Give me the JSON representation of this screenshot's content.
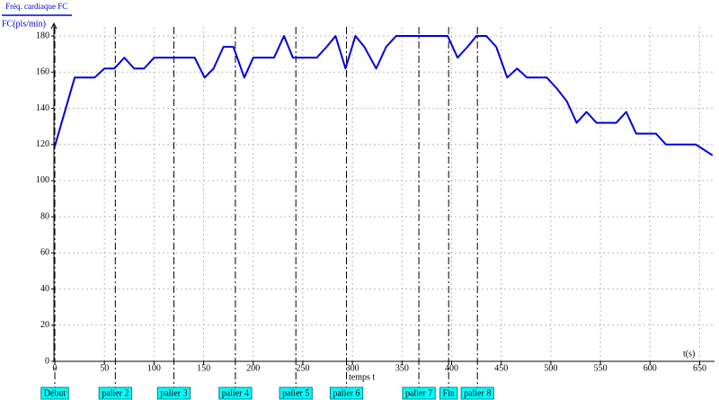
{
  "chart_data": {
    "type": "line",
    "ylabel": "FC(pls/min)",
    "xlabel": "t(s)",
    "annotation": "temps t",
    "xlim": [
      0,
      665
    ],
    "ylim": [
      0,
      185
    ],
    "xticks": [
      0,
      50,
      100,
      150,
      200,
      250,
      300,
      350,
      400,
      450,
      500,
      550,
      600,
      650
    ],
    "yticks": [
      0,
      20,
      40,
      60,
      80,
      100,
      120,
      140,
      160,
      180
    ],
    "grid": true,
    "x": [
      0,
      20,
      40,
      50,
      60,
      70,
      80,
      90,
      100,
      141,
      151,
      160,
      170,
      180,
      191,
      200,
      221,
      231,
      240,
      264,
      274,
      283,
      293,
      303,
      312,
      324,
      334,
      344,
      396,
      406,
      416,
      425,
      435,
      445,
      456,
      466,
      476,
      496,
      506,
      516,
      526,
      536,
      546,
      566,
      576,
      586,
      606,
      616,
      646,
      663
    ],
    "series": [
      {
        "name": "Fréq. cardiaque FC",
        "color": "#0000dd",
        "values": [
          119,
          157,
          157,
          162,
          162,
          168,
          162,
          162,
          168,
          168,
          157,
          162,
          174,
          174,
          157,
          168,
          168,
          180,
          168,
          168,
          174,
          180,
          162,
          180,
          174,
          162,
          174,
          180,
          180,
          168,
          174,
          180,
          180,
          174,
          157,
          162,
          157,
          157,
          151,
          144,
          132,
          138,
          132,
          132,
          138,
          126,
          126,
          120,
          120,
          114
        ]
      }
    ],
    "markers": [
      {
        "label": "Début",
        "t": 0
      },
      {
        "label": "palier 2",
        "t": 61
      },
      {
        "label": "palier 3",
        "t": 120
      },
      {
        "label": "palier 4",
        "t": 182
      },
      {
        "label": "palier 5",
        "t": 243
      },
      {
        "label": "palier 6",
        "t": 294
      },
      {
        "label": "palier 7",
        "t": 367
      },
      {
        "label": "Fin",
        "t": 397
      },
      {
        "label": "palier 8",
        "t": 426
      }
    ]
  }
}
